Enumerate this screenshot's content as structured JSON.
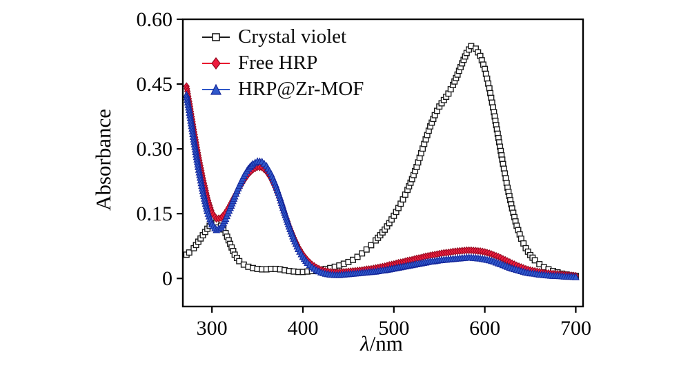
{
  "figure": {
    "background": "#ffffff"
  },
  "chart_data": {
    "type": "line",
    "title": "",
    "xlabel": "λ/nm",
    "xlabel_parts": [
      "λ",
      "/nm"
    ],
    "ylabel": "Absorbance",
    "xlim": [
      268,
      708
    ],
    "ylim": [
      -0.065,
      0.6
    ],
    "x_ticks": [
      300,
      400,
      500,
      600,
      700
    ],
    "x_tick_labels": [
      "300",
      "400",
      "500",
      "600",
      "700"
    ],
    "y_ticks": [
      0,
      0.15,
      0.3,
      0.45,
      0.6
    ],
    "y_tick_labels": [
      "0",
      "0.15",
      "0.30",
      "0.45",
      "0.60"
    ],
    "grid": false,
    "legend_position": "upper-left",
    "axis_color": "#000000",
    "x": [
      272,
      275,
      280,
      285,
      290,
      295,
      300,
      305,
      310,
      315,
      320,
      325,
      330,
      335,
      340,
      345,
      350,
      355,
      360,
      365,
      370,
      375,
      380,
      385,
      390,
      395,
      400,
      405,
      410,
      415,
      420,
      425,
      430,
      435,
      440,
      445,
      450,
      455,
      460,
      465,
      470,
      475,
      480,
      485,
      490,
      495,
      500,
      505,
      510,
      515,
      520,
      525,
      530,
      535,
      540,
      545,
      550,
      555,
      560,
      565,
      570,
      575,
      580,
      585,
      590,
      595,
      600,
      605,
      610,
      615,
      620,
      625,
      630,
      635,
      640,
      645,
      650,
      655,
      660,
      665,
      670,
      675,
      680,
      685,
      690,
      695,
      700
    ],
    "series": [
      {
        "id": "crystal-violet",
        "name": "Crystal violet",
        "marker": "square-open",
        "color": "#1a1a1a",
        "marker_fill": "#ffffff",
        "marker_edge": "#1a1a1a",
        "line_width": 1.5,
        "marker_spacing": 6.5,
        "values": [
          0.055,
          0.06,
          0.07,
          0.085,
          0.1,
          0.115,
          0.128,
          0.13,
          0.122,
          0.105,
          0.08,
          0.055,
          0.04,
          0.032,
          0.027,
          0.024,
          0.022,
          0.021,
          0.021,
          0.022,
          0.022,
          0.021,
          0.019,
          0.017,
          0.016,
          0.015,
          0.015,
          0.016,
          0.017,
          0.018,
          0.02,
          0.022,
          0.024,
          0.027,
          0.03,
          0.034,
          0.038,
          0.043,
          0.05,
          0.058,
          0.067,
          0.077,
          0.088,
          0.1,
          0.113,
          0.128,
          0.145,
          0.163,
          0.183,
          0.205,
          0.23,
          0.258,
          0.29,
          0.322,
          0.352,
          0.378,
          0.398,
          0.413,
          0.428,
          0.448,
          0.472,
          0.498,
          0.522,
          0.538,
          0.532,
          0.515,
          0.485,
          0.44,
          0.385,
          0.325,
          0.265,
          0.21,
          0.162,
          0.122,
          0.092,
          0.07,
          0.054,
          0.042,
          0.033,
          0.026,
          0.021,
          0.017,
          0.014,
          0.011,
          0.009,
          0.007,
          0.006
        ]
      },
      {
        "id": "free-hrp",
        "name": "Free HRP",
        "marker": "diamond",
        "color": "#e8112d",
        "marker_fill": "#ee1c3e",
        "marker_edge": "#93091f",
        "line_width": 2.5,
        "marker_spacing": 3.8,
        "values": [
          0.445,
          0.41,
          0.345,
          0.285,
          0.232,
          0.186,
          0.152,
          0.138,
          0.14,
          0.152,
          0.17,
          0.19,
          0.21,
          0.227,
          0.242,
          0.252,
          0.258,
          0.257,
          0.248,
          0.232,
          0.21,
          0.182,
          0.15,
          0.12,
          0.094,
          0.072,
          0.055,
          0.042,
          0.032,
          0.025,
          0.02,
          0.017,
          0.015,
          0.014,
          0.014,
          0.015,
          0.016,
          0.017,
          0.018,
          0.019,
          0.021,
          0.022,
          0.024,
          0.026,
          0.028,
          0.031,
          0.033,
          0.036,
          0.038,
          0.041,
          0.043,
          0.046,
          0.048,
          0.051,
          0.053,
          0.055,
          0.057,
          0.059,
          0.06,
          0.062,
          0.063,
          0.064,
          0.065,
          0.065,
          0.064,
          0.063,
          0.061,
          0.058,
          0.054,
          0.05,
          0.045,
          0.04,
          0.035,
          0.03,
          0.026,
          0.022,
          0.019,
          0.017,
          0.015,
          0.013,
          0.012,
          0.011,
          0.01,
          0.009,
          0.008,
          0.007,
          0.006
        ]
      },
      {
        "id": "hrp-zr-mof",
        "name": "HRP@Zr-MOF",
        "marker": "triangle",
        "color": "#2e57c8",
        "marker_fill": "#3059cb",
        "marker_edge": "#14279b",
        "line_width": 2,
        "marker_spacing": 3.8,
        "values": [
          0.425,
          0.39,
          0.322,
          0.258,
          0.202,
          0.156,
          0.125,
          0.112,
          0.118,
          0.138,
          0.163,
          0.19,
          0.215,
          0.237,
          0.254,
          0.265,
          0.271,
          0.27,
          0.26,
          0.242,
          0.217,
          0.186,
          0.152,
          0.12,
          0.092,
          0.068,
          0.05,
          0.036,
          0.026,
          0.019,
          0.014,
          0.011,
          0.009,
          0.008,
          0.008,
          0.009,
          0.01,
          0.011,
          0.012,
          0.013,
          0.014,
          0.015,
          0.016,
          0.018,
          0.019,
          0.021,
          0.023,
          0.025,
          0.027,
          0.029,
          0.031,
          0.033,
          0.035,
          0.037,
          0.039,
          0.04,
          0.042,
          0.043,
          0.044,
          0.045,
          0.046,
          0.047,
          0.048,
          0.048,
          0.047,
          0.046,
          0.044,
          0.042,
          0.039,
          0.035,
          0.031,
          0.027,
          0.023,
          0.02,
          0.017,
          0.014,
          0.012,
          0.011,
          0.009,
          0.008,
          0.007,
          0.006,
          0.006,
          0.005,
          0.004,
          0.004,
          0.003
        ]
      }
    ]
  }
}
